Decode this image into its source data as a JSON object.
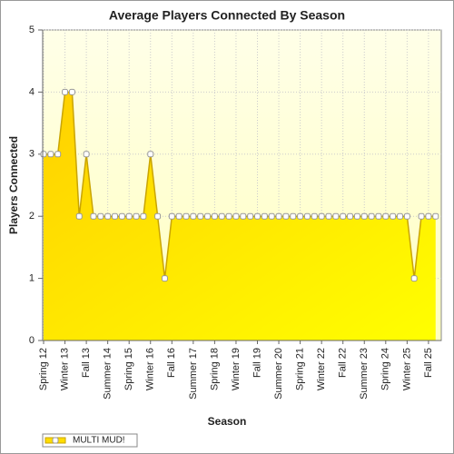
{
  "chart_data": {
    "type": "area",
    "title": "Average Players Connected By Season",
    "x_label": "Season",
    "y_label": "Players Connected",
    "categories": [
      "Spring 12",
      null,
      null,
      "Winter 13",
      null,
      null,
      "Fall 13",
      null,
      null,
      "Summer 14",
      null,
      null,
      "Spring 15",
      null,
      null,
      "Winter 16",
      null,
      null,
      "Fall 16",
      null,
      null,
      "Summer 17",
      null,
      null,
      "Spring 18",
      null,
      null,
      "Winter 19",
      null,
      null,
      "Fall 19",
      null,
      null,
      "Summer 20",
      null,
      null,
      "Spring 21",
      null,
      null,
      "Winter 22",
      null,
      null,
      "Fall 22",
      null,
      null,
      "Summer 23",
      null,
      null,
      "Spring 24",
      null,
      null,
      "Winter 25",
      null,
      null,
      "Fall 25",
      null
    ],
    "series": [
      {
        "name": "MULTI MUD!",
        "color": "#ffdd00",
        "line_color": "#c9a400",
        "values": [
          3,
          3,
          3,
          4,
          4,
          2,
          3,
          2,
          2,
          2,
          2,
          2,
          2,
          2,
          2,
          3,
          2,
          1,
          2,
          2,
          2,
          2,
          2,
          2,
          2,
          2,
          2,
          2,
          2,
          2,
          2,
          2,
          2,
          2,
          2,
          2,
          2,
          2,
          2,
          2,
          2,
          2,
          2,
          2,
          2,
          2,
          2,
          2,
          2,
          2,
          2,
          2,
          1,
          2,
          2,
          2
        ]
      }
    ],
    "ylim": [
      0,
      5
    ],
    "yticks": [
      0,
      1,
      2,
      3,
      4,
      5
    ],
    "grid": true,
    "legend": "bottom-left"
  }
}
